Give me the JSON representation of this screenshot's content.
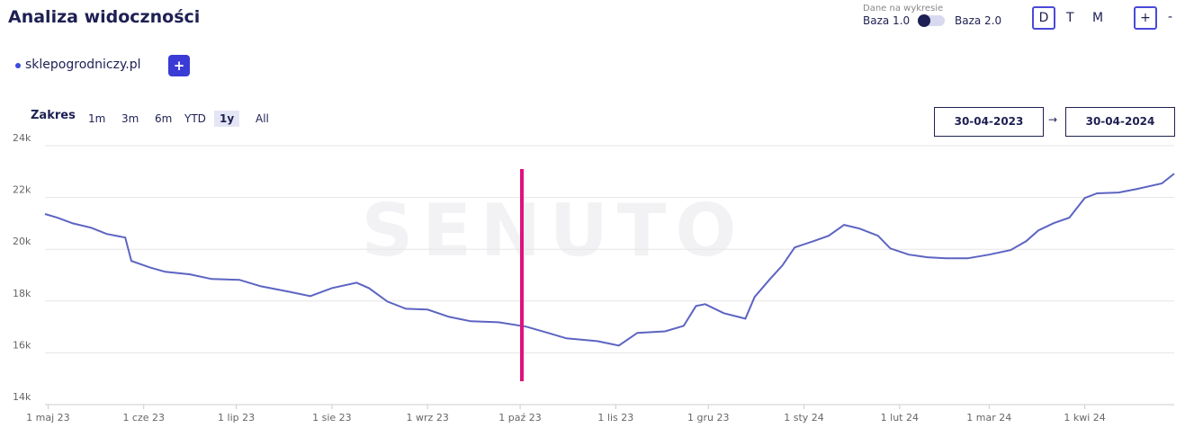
{
  "header": {
    "title": "Analiza widoczności",
    "data_label": "Dane na wykresie",
    "toggle_left": "Baza 1.0",
    "toggle_right": "Baza 2.0",
    "granularity": [
      "D",
      "T",
      "M"
    ],
    "zoom_in": "+",
    "zoom_out": "-"
  },
  "domain_bar": {
    "add": "+"
  },
  "range": {
    "label": "Zakres",
    "options": [
      "1m",
      "3m",
      "6m",
      "YTD",
      "1y",
      "All"
    ],
    "active": 4,
    "date_from": "30-04-2023",
    "arrow": "→",
    "date_to": "30-04-2024"
  },
  "watermark": "SENUTO",
  "chart_data": {
    "type": "line",
    "x": [
      "2023-04-30",
      "2023-05-04",
      "2023-05-09",
      "2023-05-15",
      "2023-05-20",
      "2023-05-26",
      "2023-05-28",
      "2023-06-03",
      "2023-06-08",
      "2023-06-16",
      "2023-06-23",
      "2023-07-02",
      "2023-07-09",
      "2023-07-18",
      "2023-07-25",
      "2023-08-01",
      "2023-08-09",
      "2023-08-13",
      "2023-08-19",
      "2023-08-25",
      "2023-09-01",
      "2023-09-08",
      "2023-09-15",
      "2023-09-24",
      "2023-10-03",
      "2023-10-10",
      "2023-10-16",
      "2023-10-26",
      "2023-11-02",
      "2023-11-08",
      "2023-11-17",
      "2023-11-23",
      "2023-11-27",
      "2023-11-30",
      "2023-12-06",
      "2023-12-13",
      "2023-12-16",
      "2023-12-21",
      "2023-12-25",
      "2023-12-29",
      "2024-01-04",
      "2024-01-09",
      "2024-01-14",
      "2024-01-19",
      "2024-01-25",
      "2024-01-29",
      "2024-02-04",
      "2024-02-10",
      "2024-02-16",
      "2024-02-23",
      "2024-03-01",
      "2024-03-08",
      "2024-03-13",
      "2024-03-17",
      "2024-03-22",
      "2024-03-27",
      "2024-04-01",
      "2024-04-05",
      "2024-04-12",
      "2024-04-18",
      "2024-04-26",
      "2024-04-30"
    ],
    "series": [
      {
        "name": "sklepogrodniczy.pl",
        "color": "#5c64c2",
        "values": [
          21360,
          21220,
          21000,
          20830,
          20590,
          20450,
          19550,
          19300,
          19130,
          19030,
          18850,
          18820,
          18570,
          18360,
          18190,
          18500,
          18710,
          18500,
          17980,
          17700,
          17670,
          17390,
          17220,
          17180,
          17010,
          16770,
          16560,
          16450,
          16280,
          16770,
          16830,
          17040,
          17810,
          17880,
          17530,
          17320,
          18160,
          18850,
          19370,
          20070,
          20310,
          20520,
          20940,
          20800,
          20520,
          20030,
          19790,
          19690,
          19650,
          19650,
          19790,
          19970,
          20310,
          20730,
          21010,
          21220,
          21980,
          22160,
          22190,
          22330,
          22540,
          22920
        ]
      }
    ],
    "xlim": [
      "2023-04-30",
      "2024-04-30"
    ],
    "xticks": [
      {
        "value": "2023-05-01",
        "label": "1 maj 23"
      },
      {
        "value": "2023-06-01",
        "label": "1 cze 23"
      },
      {
        "value": "2023-07-01",
        "label": "1 lip 23"
      },
      {
        "value": "2023-08-01",
        "label": "1 sie 23"
      },
      {
        "value": "2023-09-01",
        "label": "1 wrz 23"
      },
      {
        "value": "2023-10-01",
        "label": "1 paź 23"
      },
      {
        "value": "2023-11-01",
        "label": "1 lis 23"
      },
      {
        "value": "2023-12-01",
        "label": "1 gru 23"
      },
      {
        "value": "2024-01-01",
        "label": "1 sty 24"
      },
      {
        "value": "2024-02-01",
        "label": "1 lut 24"
      },
      {
        "value": "2024-03-01",
        "label": "1 mar 24"
      },
      {
        "value": "2024-04-01",
        "label": "1 kwi 24"
      }
    ],
    "ylim": [
      14000,
      24000
    ],
    "yticks": [
      {
        "value": 14000,
        "label": "14k"
      },
      {
        "value": 16000,
        "label": "16k"
      },
      {
        "value": 18000,
        "label": "18k"
      },
      {
        "value": 20000,
        "label": "20k"
      },
      {
        "value": 22000,
        "label": "22k"
      },
      {
        "value": 24000,
        "label": "24k"
      }
    ],
    "grid": true
  }
}
